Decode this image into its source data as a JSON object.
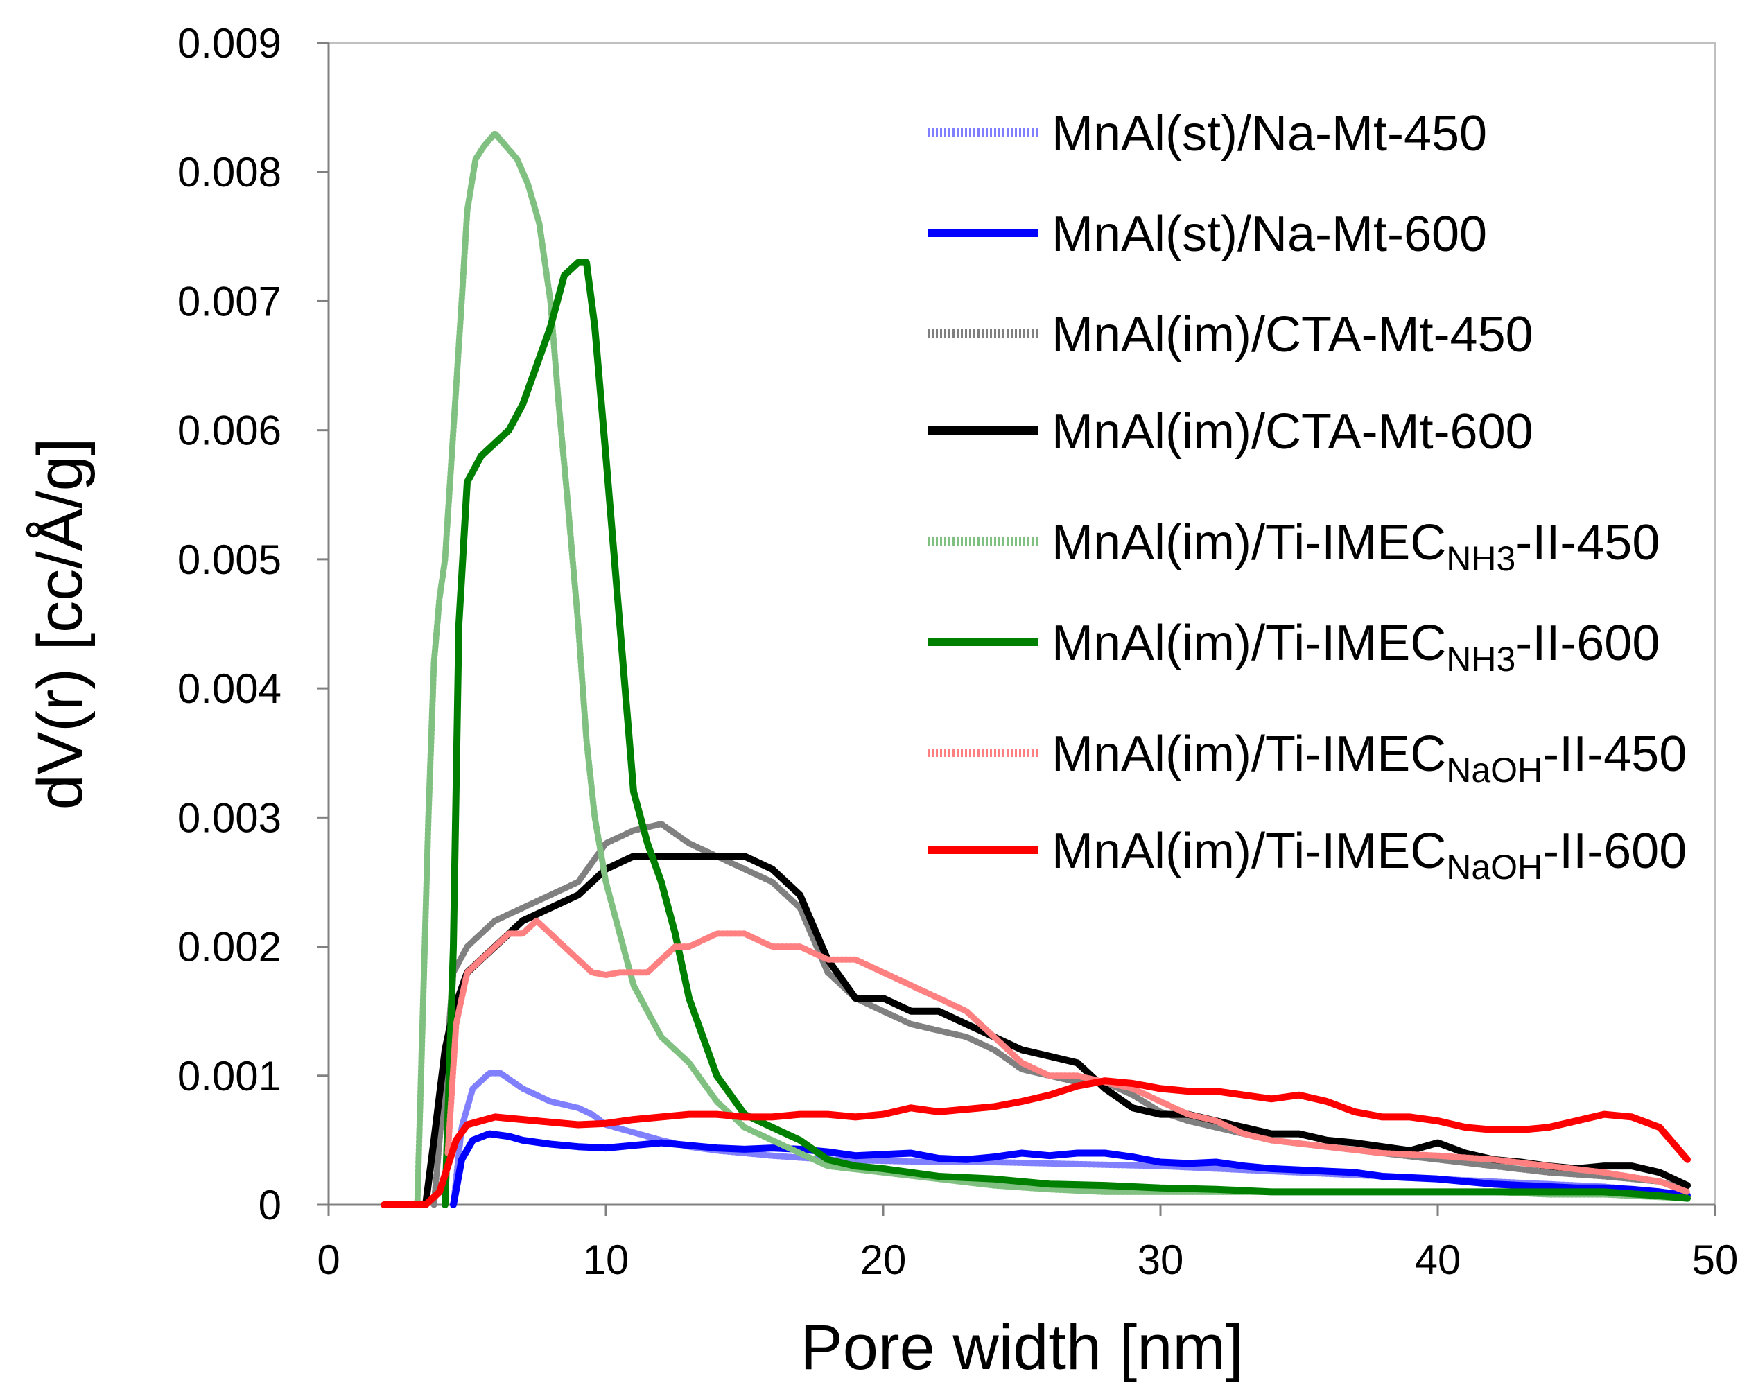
{
  "chart_data": {
    "type": "line",
    "title": "",
    "xlabel": "Pore width [nm]",
    "ylabel": "dV(r) [cc/Å/g]",
    "xlim": [
      0,
      50
    ],
    "ylim": [
      0,
      0.009
    ],
    "xticks": [
      0,
      10,
      20,
      30,
      40,
      50
    ],
    "xtick_labels": [
      "0",
      "10",
      "20",
      "30",
      "40",
      "50"
    ],
    "yticks": [
      0,
      0.001,
      0.002,
      0.003,
      0.004,
      0.005,
      0.006,
      0.007,
      0.008,
      0.009
    ],
    "ytick_labels": [
      "0",
      "0.001",
      "0.002",
      "0.003",
      "0.004",
      "0.005",
      "0.006",
      "0.007",
      "0.008",
      "0.009"
    ],
    "grid": false,
    "legend_position": "top-right",
    "series": [
      {
        "name": "MnAl(st)/Na-Mt-450",
        "label_main": "MnAl(st)/Na-Mt-450",
        "label_sub": "",
        "label_tail": "",
        "color": "#8080ff",
        "style": "dotted",
        "x": [
          4.5,
          4.8,
          5.2,
          5.8,
          6.2,
          7,
          8,
          9,
          9.5,
          10,
          11,
          12,
          13,
          14,
          15,
          16,
          18,
          20,
          22,
          24,
          26,
          28,
          30,
          32,
          34,
          36,
          38,
          40,
          42,
          44,
          46,
          48,
          49
        ],
        "y": [
          0,
          0.0006,
          0.0009,
          0.00102,
          0.00102,
          0.0009,
          0.0008,
          0.00075,
          0.0007,
          0.00062,
          0.00056,
          0.0005,
          0.00045,
          0.00042,
          0.0004,
          0.00038,
          0.00035,
          0.00034,
          0.00033,
          0.00033,
          0.00032,
          0.00031,
          0.0003,
          0.00028,
          0.00026,
          0.00024,
          0.00022,
          0.0002,
          0.00018,
          0.00016,
          0.00014,
          0.0001,
          8e-05
        ]
      },
      {
        "name": "MnAl(st)/Na-Mt-600",
        "label_main": "MnAl(st)/Na-Mt-600",
        "label_sub": "",
        "label_tail": "",
        "color": "#0000ff",
        "style": "solid",
        "x": [
          4.5,
          4.8,
          5.2,
          5.8,
          6.5,
          7,
          8,
          9,
          10,
          11,
          12,
          13,
          14,
          15,
          16,
          17,
          18,
          19,
          20,
          21,
          22,
          23,
          24,
          25,
          26,
          27,
          28,
          29,
          30,
          31,
          32,
          33,
          34,
          35,
          36,
          37,
          38,
          39,
          40,
          41,
          42,
          43,
          44,
          45,
          46,
          47,
          48,
          49
        ],
        "y": [
          0,
          0.00035,
          0.0005,
          0.00055,
          0.00053,
          0.0005,
          0.00047,
          0.00045,
          0.00044,
          0.00046,
          0.00048,
          0.00046,
          0.00044,
          0.00043,
          0.00044,
          0.00043,
          0.00041,
          0.00038,
          0.00039,
          0.0004,
          0.00036,
          0.00035,
          0.00037,
          0.0004,
          0.00038,
          0.0004,
          0.0004,
          0.00037,
          0.00033,
          0.00032,
          0.00033,
          0.0003,
          0.00028,
          0.00027,
          0.00026,
          0.00025,
          0.00022,
          0.00021,
          0.0002,
          0.00018,
          0.00016,
          0.00015,
          0.00014,
          0.00013,
          0.00013,
          0.00012,
          0.0001,
          7e-05
        ]
      },
      {
        "name": "MnAl(im)/CTA-Mt-450",
        "label_main": "MnAl(im)/CTA-Mt-450",
        "label_sub": "",
        "label_tail": "",
        "color": "#808080",
        "style": "dotted",
        "x": [
          3.8,
          4.2,
          4.5,
          5,
          5.5,
          6,
          7,
          8,
          9,
          10,
          11,
          12,
          13,
          14,
          15,
          16,
          17,
          18,
          19,
          20,
          21,
          22,
          23,
          24,
          25,
          26,
          27,
          28,
          29,
          30,
          31,
          32,
          34,
          36,
          38,
          40,
          42,
          44,
          46,
          48,
          49
        ],
        "y": [
          0,
          0.001,
          0.0018,
          0.002,
          0.0021,
          0.0022,
          0.0023,
          0.0024,
          0.0025,
          0.0028,
          0.0029,
          0.00295,
          0.0028,
          0.0027,
          0.0026,
          0.0025,
          0.0023,
          0.0018,
          0.0016,
          0.0015,
          0.0014,
          0.00135,
          0.0013,
          0.0012,
          0.00105,
          0.001,
          0.00095,
          0.00095,
          0.00085,
          0.00072,
          0.00065,
          0.0006,
          0.0005,
          0.00045,
          0.0004,
          0.00035,
          0.0003,
          0.00025,
          0.00022,
          0.00018,
          0.00012
        ]
      },
      {
        "name": "MnAl(im)/CTA-Mt-600",
        "label_main": "MnAl(im)/CTA-Mt-600",
        "label_sub": "",
        "label_tail": "",
        "color": "#000000",
        "style": "solid",
        "x": [
          3.5,
          3.8,
          4.2,
          4.5,
          5,
          5.5,
          6,
          7,
          8,
          9,
          10,
          11,
          12,
          13,
          14,
          15,
          16,
          17,
          18,
          19,
          20,
          21,
          22,
          23,
          24,
          25,
          26,
          27,
          28,
          29,
          30,
          31,
          32,
          33,
          34,
          35,
          36,
          37,
          38,
          39,
          40,
          41,
          42,
          43,
          44,
          45,
          46,
          47,
          48,
          49
        ],
        "y": [
          0,
          0.0005,
          0.0012,
          0.0015,
          0.0018,
          0.0019,
          0.002,
          0.0022,
          0.0023,
          0.0024,
          0.0026,
          0.0027,
          0.0027,
          0.0027,
          0.0027,
          0.0027,
          0.0026,
          0.0024,
          0.0019,
          0.0016,
          0.0016,
          0.0015,
          0.0015,
          0.0014,
          0.0013,
          0.0012,
          0.00115,
          0.0011,
          0.0009,
          0.00075,
          0.0007,
          0.0007,
          0.00065,
          0.0006,
          0.00055,
          0.00055,
          0.0005,
          0.00048,
          0.00045,
          0.00042,
          0.00048,
          0.0004,
          0.00035,
          0.00033,
          0.0003,
          0.00028,
          0.0003,
          0.0003,
          0.00025,
          0.00015
        ]
      },
      {
        "name": "MnAl(im)/Ti-IMECNH3-II-450",
        "label_main": "MnAl(im)/Ti-IMEC",
        "label_sub": "NH3",
        "label_tail": "-II-450",
        "color": "#80c080",
        "style": "dotted",
        "x": [
          3.2,
          3.4,
          3.6,
          3.8,
          4,
          4.2,
          4.5,
          4.8,
          5.0,
          5.3,
          5.6,
          6.0,
          6.4,
          6.8,
          7.2,
          7.6,
          8.0,
          8.3,
          8.6,
          9.0,
          9.3,
          9.6,
          10,
          10.5,
          11,
          11.5,
          12,
          13,
          14,
          15,
          16,
          17,
          18,
          20,
          22,
          24,
          26,
          28,
          30,
          32,
          34,
          36,
          38,
          40,
          42,
          44,
          46,
          48,
          49
        ],
        "y": [
          0,
          0.0015,
          0.003,
          0.0042,
          0.0047,
          0.005,
          0.006,
          0.007,
          0.0077,
          0.0081,
          0.0082,
          0.0083,
          0.0082,
          0.0081,
          0.0079,
          0.0076,
          0.007,
          0.0062,
          0.0055,
          0.0045,
          0.0036,
          0.003,
          0.0025,
          0.0021,
          0.0017,
          0.0015,
          0.0013,
          0.0011,
          0.0008,
          0.0006,
          0.0005,
          0.0004,
          0.0003,
          0.00025,
          0.0002,
          0.00015,
          0.00012,
          0.0001,
          0.0001,
          0.0001,
          0.0001,
          0.0001,
          0.0001,
          0.0001,
          0.0001,
          8e-05,
          8e-05,
          6e-05,
          5e-05
        ]
      },
      {
        "name": "MnAl(im)/Ti-IMECNH3-II-600",
        "label_main": "MnAl(im)/Ti-IMEC",
        "label_sub": "NH3",
        "label_tail": "-II-600",
        "color": "#008000",
        "style": "solid",
        "x": [
          4.2,
          4.5,
          4.7,
          5.0,
          5.5,
          6.0,
          6.5,
          7.0,
          7.5,
          8.0,
          8.5,
          9.0,
          9.3,
          9.6,
          10.0,
          10.5,
          11.0,
          11.5,
          12.0,
          12.5,
          13.0,
          14.0,
          15.0,
          16.0,
          17.0,
          18.0,
          19.0,
          20.0,
          21.0,
          22.0,
          24.0,
          26.0,
          28.0,
          30.0,
          32.0,
          34.0,
          36.0,
          38.0,
          40.0,
          42.0,
          44.0,
          46.0,
          48.0,
          49.0
        ],
        "y": [
          0,
          0.002,
          0.0045,
          0.0056,
          0.0058,
          0.0059,
          0.006,
          0.0062,
          0.0065,
          0.0068,
          0.0072,
          0.0073,
          0.0073,
          0.0068,
          0.0058,
          0.0045,
          0.0032,
          0.0028,
          0.0025,
          0.0021,
          0.0016,
          0.001,
          0.0007,
          0.0006,
          0.0005,
          0.00035,
          0.0003,
          0.00028,
          0.00025,
          0.00022,
          0.0002,
          0.00016,
          0.00015,
          0.00013,
          0.00012,
          0.0001,
          0.0001,
          0.0001,
          0.0001,
          0.0001,
          0.0001,
          0.0001,
          7e-05,
          5e-05
        ]
      },
      {
        "name": "MnAl(im)/Ti-IMECNaOH-II-450",
        "label_main": "MnAl(im)/Ti-IMEC",
        "label_sub": "NaOH",
        "label_tail": "-II-450",
        "color": "#ff8080",
        "style": "dotted",
        "x": [
          4.3,
          4.6,
          5.0,
          5.5,
          6.0,
          6.5,
          7.0,
          7.5,
          8.0,
          8.5,
          9.0,
          9.5,
          10.0,
          10.5,
          11.0,
          11.5,
          12.0,
          12.5,
          13.0,
          14.0,
          15.0,
          16.0,
          17.0,
          18.0,
          19.0,
          20.0,
          21.0,
          22.0,
          23.0,
          24.0,
          25.0,
          26.0,
          27.0,
          28.0,
          29.0,
          30.0,
          31.0,
          32.0,
          33.0,
          34.0,
          36.0,
          38.0,
          40.0,
          42.0,
          44.0,
          46.0,
          48.0,
          49.0
        ],
        "y": [
          0.0004,
          0.0014,
          0.0018,
          0.0019,
          0.002,
          0.0021,
          0.0021,
          0.0022,
          0.0021,
          0.002,
          0.0019,
          0.0018,
          0.00178,
          0.0018,
          0.0018,
          0.0018,
          0.0019,
          0.002,
          0.002,
          0.0021,
          0.0021,
          0.002,
          0.002,
          0.0019,
          0.0019,
          0.0018,
          0.0017,
          0.0016,
          0.0015,
          0.0013,
          0.0011,
          0.001,
          0.001,
          0.00095,
          0.0009,
          0.0008,
          0.0007,
          0.00065,
          0.00055,
          0.0005,
          0.00045,
          0.0004,
          0.00038,
          0.00035,
          0.0003,
          0.00025,
          0.00018,
          0.0001
        ]
      },
      {
        "name": "MnAl(im)/Ti-IMECNaOH-II-600",
        "label_main": "MnAl(im)/Ti-IMEC",
        "label_sub": "NaOH",
        "label_tail": "-II-600",
        "color": "#ff0000",
        "style": "solid",
        "x": [
          2.0,
          3.5,
          4.0,
          4.3,
          4.6,
          5.0,
          5.5,
          6.0,
          7.0,
          8.0,
          9.0,
          10.0,
          11.0,
          12.0,
          13.0,
          14.0,
          15.0,
          16.0,
          17.0,
          18.0,
          19.0,
          20.0,
          21.0,
          22.0,
          23.0,
          24.0,
          25.0,
          26.0,
          27.0,
          28.0,
          29.0,
          30.0,
          31.0,
          32.0,
          33.0,
          34.0,
          35.0,
          36.0,
          37.0,
          38.0,
          39.0,
          40.0,
          41.0,
          42.0,
          43.0,
          44.0,
          45.0,
          46.0,
          47.0,
          48.0,
          49.0
        ],
        "y": [
          0,
          0,
          0.0001,
          0.0003,
          0.0005,
          0.00062,
          0.00065,
          0.00068,
          0.00066,
          0.00064,
          0.00062,
          0.00063,
          0.00066,
          0.00068,
          0.0007,
          0.0007,
          0.00068,
          0.00068,
          0.0007,
          0.0007,
          0.00068,
          0.0007,
          0.00075,
          0.00072,
          0.00074,
          0.00076,
          0.0008,
          0.00085,
          0.00092,
          0.00096,
          0.00094,
          0.0009,
          0.00088,
          0.00088,
          0.00085,
          0.00082,
          0.00085,
          0.0008,
          0.00072,
          0.00068,
          0.00068,
          0.00065,
          0.0006,
          0.00058,
          0.00058,
          0.0006,
          0.00065,
          0.0007,
          0.00068,
          0.0006,
          0.00035
        ]
      }
    ]
  }
}
